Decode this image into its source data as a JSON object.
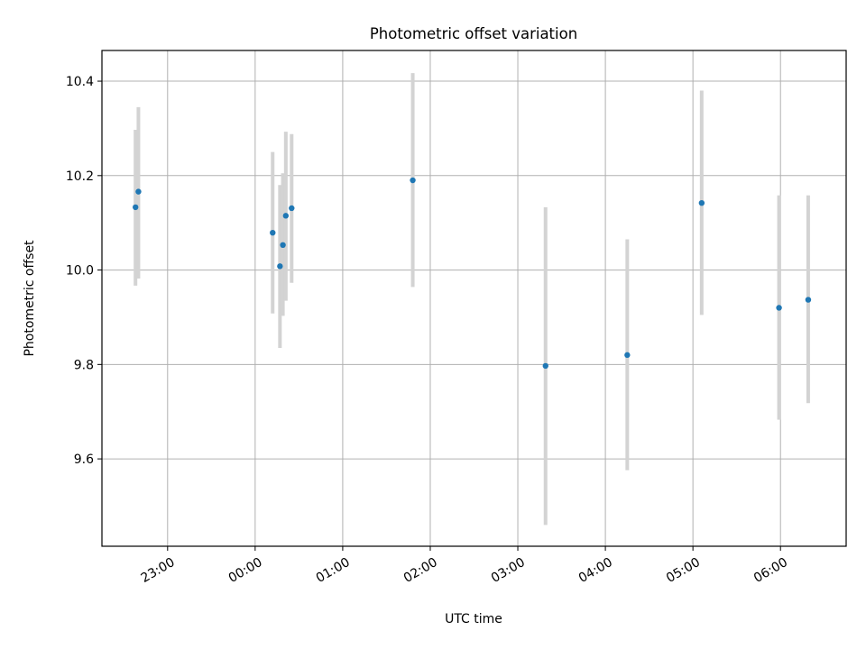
{
  "chart_data": {
    "type": "scatter",
    "title": "Photometric offset variation",
    "xlabel": "UTC time",
    "ylabel": "Photometric offset",
    "x_ticks": [
      "23:00",
      "00:00",
      "01:00",
      "02:00",
      "03:00",
      "04:00",
      "05:00",
      "06:00"
    ],
    "y_ticks": [
      "9.6",
      "9.8",
      "10.0",
      "10.2",
      "10.4"
    ],
    "xlim": [
      "22:15",
      "06:45"
    ],
    "ylim": [
      9.415,
      10.465
    ],
    "grid": true,
    "marker_color": "#1f77b4",
    "errorbar_color": "#d3d3d3",
    "points": [
      {
        "time": "22:38",
        "y": 10.133,
        "yerr_low": 9.967,
        "yerr_high": 10.297
      },
      {
        "time": "22:40",
        "y": 10.166,
        "yerr_low": 9.982,
        "yerr_high": 10.345
      },
      {
        "time": "00:12",
        "y": 10.079,
        "yerr_low": 9.908,
        "yerr_high": 10.25
      },
      {
        "time": "00:17",
        "y": 10.008,
        "yerr_low": 9.835,
        "yerr_high": 10.18
      },
      {
        "time": "00:19",
        "y": 10.053,
        "yerr_low": 9.903,
        "yerr_high": 10.205
      },
      {
        "time": "00:21",
        "y": 10.115,
        "yerr_low": 9.935,
        "yerr_high": 10.293
      },
      {
        "time": "00:25",
        "y": 10.131,
        "yerr_low": 9.973,
        "yerr_high": 10.288
      },
      {
        "time": "01:48",
        "y": 10.19,
        "yerr_low": 9.964,
        "yerr_high": 10.417
      },
      {
        "time": "03:19",
        "y": 9.797,
        "yerr_low": 9.46,
        "yerr_high": 10.133
      },
      {
        "time": "04:15",
        "y": 9.82,
        "yerr_low": 9.576,
        "yerr_high": 10.065
      },
      {
        "time": "05:06",
        "y": 10.142,
        "yerr_low": 9.905,
        "yerr_high": 10.38
      },
      {
        "time": "05:59",
        "y": 9.92,
        "yerr_low": 9.683,
        "yerr_high": 10.158
      },
      {
        "time": "06:19",
        "y": 9.937,
        "yerr_low": 9.718,
        "yerr_high": 10.158
      }
    ]
  }
}
